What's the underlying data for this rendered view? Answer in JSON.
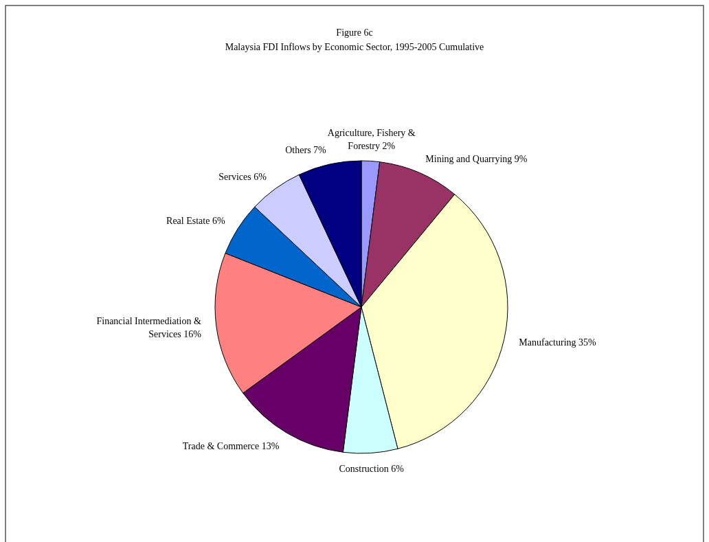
{
  "chart_data": {
    "type": "pie",
    "title": "Figure 6c",
    "subtitle": "Malaysia FDI Inflows by Economic Sector, 1995-2005 Cumulative",
    "categories": [
      "Agriculture, Fishery & Forestry",
      "Mining and Quarrying",
      "Manufacturing",
      "Construction",
      "Trade & Commerce",
      "Financial Intermediation & Services",
      "Real Estate",
      "Services",
      "Others"
    ],
    "values": [
      2,
      9,
      35,
      6,
      13,
      16,
      6,
      6,
      7
    ],
    "colors": [
      "#9999ff",
      "#993366",
      "#ffffcc",
      "#ccffff",
      "#660066",
      "#ff8080",
      "#0066cc",
      "#ccccff",
      "#000080"
    ],
    "value_labels": [
      "2%",
      "9%",
      "35%",
      "6%",
      "13%",
      "16%",
      "6%",
      "6%",
      "7%"
    ]
  }
}
